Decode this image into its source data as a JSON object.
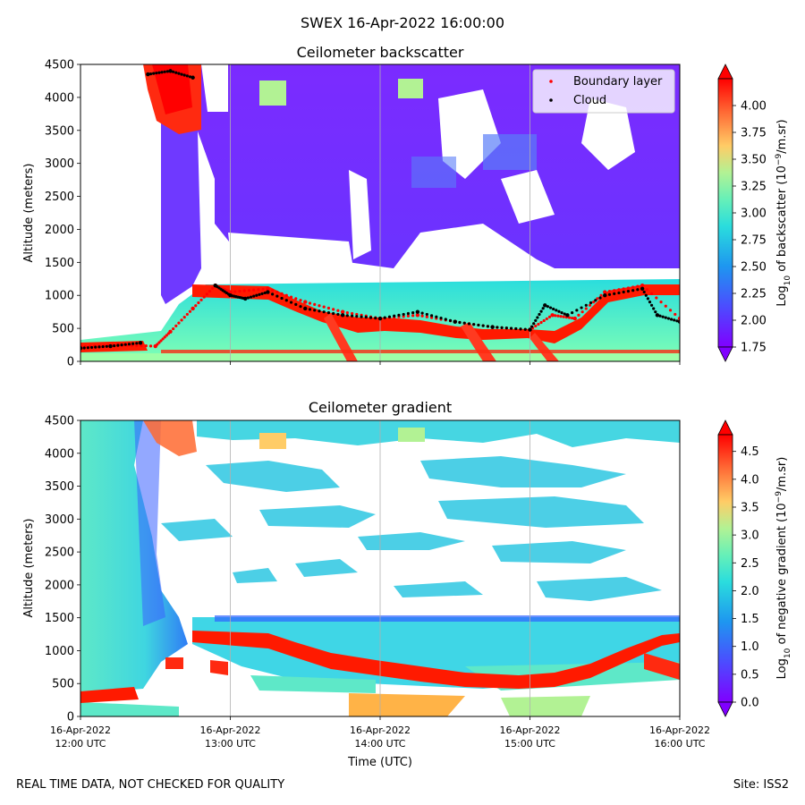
{
  "figure": {
    "title": "SWEX 16-Apr-2022 16:00:00",
    "footnote_left": "REAL TIME DATA, NOT CHECKED FOR QUALITY",
    "footnote_right": "Site: ISS2"
  },
  "chart_data": [
    {
      "type": "heatmap",
      "title": "Ceilometer backscatter",
      "ylabel": "Altitude (meters)",
      "xlabel": "",
      "ylim": [
        0,
        4500
      ],
      "yticks": [
        0,
        500,
        1000,
        1500,
        2000,
        2500,
        3000,
        3500,
        4000,
        4500
      ],
      "grid": "vertical lines at hourly ticks",
      "colormap": "rainbow",
      "colorbar": {
        "label": "Log10 of backscatter (10^-9/m.sr)",
        "range": [
          1.75,
          4.25
        ],
        "ticks": [
          1.75,
          2.0,
          2.25,
          2.5,
          2.75,
          3.0,
          3.25,
          3.5,
          3.75,
          4.0
        ]
      },
      "legend": {
        "placement": "top-right",
        "entries": [
          {
            "name": "Boundary layer",
            "color": "#ff0000"
          },
          {
            "name": "Cloud",
            "color": "#000000"
          }
        ]
      },
      "series": [
        {
          "name": "Boundary layer",
          "x_hours": [
            12.0,
            12.25,
            12.5,
            12.6,
            12.75,
            12.9,
            13.0,
            13.25,
            13.5,
            13.75,
            14.0,
            14.25,
            14.5,
            14.75,
            15.0,
            15.15,
            15.3,
            15.5,
            15.75,
            16.0
          ],
          "y": [
            220,
            250,
            230,
            450,
            800,
            1150,
            1050,
            1100,
            900,
            750,
            650,
            700,
            600,
            520,
            480,
            700,
            650,
            1050,
            1150,
            650
          ]
        },
        {
          "name": "Cloud",
          "x_hours": [
            12.0,
            12.2,
            12.4,
            12.45,
            12.6,
            12.75,
            12.9,
            13.0,
            13.1,
            13.25,
            13.5,
            13.75,
            14.0,
            14.25,
            14.5,
            14.75,
            15.0,
            15.1,
            15.25,
            15.5,
            15.75,
            15.85,
            16.0
          ],
          "y": [
            200,
            230,
            280,
            4350,
            4400,
            4300,
            1150,
            1000,
            950,
            1050,
            800,
            700,
            650,
            750,
            600,
            520,
            480,
            850,
            700,
            1000,
            1100,
            700,
            600
          ]
        }
      ]
    },
    {
      "type": "heatmap",
      "title": "Ceilometer gradient",
      "ylabel": "Altitude (meters)",
      "xlabel": "Time (UTC)",
      "ylim": [
        0,
        4500
      ],
      "yticks": [
        0,
        500,
        1000,
        1500,
        2000,
        2500,
        3000,
        3500,
        4000,
        4500
      ],
      "xticks": [
        [
          "16-Apr-2022",
          "12:00 UTC"
        ],
        [
          "16-Apr-2022",
          "13:00 UTC"
        ],
        [
          "16-Apr-2022",
          "14:00 UTC"
        ],
        [
          "16-Apr-2022",
          "15:00 UTC"
        ],
        [
          "16-Apr-2022",
          "16:00 UTC"
        ]
      ],
      "xlim_hours": [
        12,
        16
      ],
      "grid": "vertical lines at hourly ticks",
      "colormap": "rainbow",
      "colorbar": {
        "label": "Log10 of negative gradient (10^-9/m.sr)",
        "range": [
          0.0,
          4.8
        ],
        "ticks": [
          0.0,
          0.5,
          1.0,
          1.5,
          2.0,
          2.5,
          3.0,
          3.5,
          4.0,
          4.5
        ]
      }
    }
  ]
}
